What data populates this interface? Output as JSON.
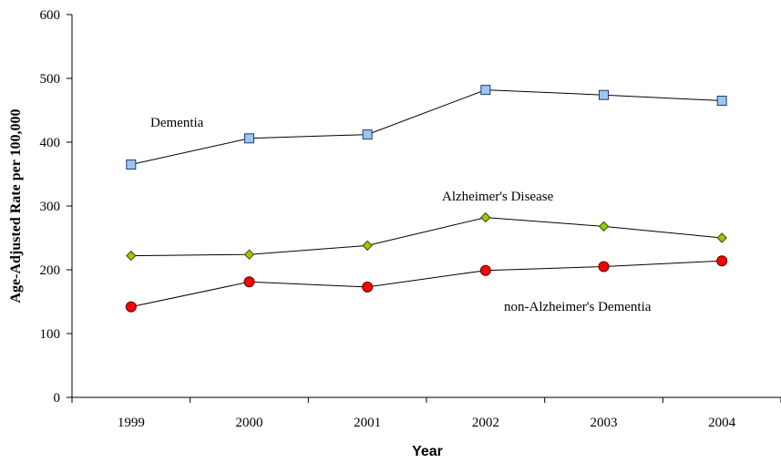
{
  "chart_data": {
    "type": "line",
    "title": "",
    "xlabel": "Year",
    "ylabel": "Age-Adjusted Rate per 100,000",
    "categories": [
      "1999",
      "2000",
      "2001",
      "2002",
      "2003",
      "2004"
    ],
    "ylim": [
      0,
      600
    ],
    "yticks": [
      0,
      100,
      200,
      300,
      400,
      500,
      600
    ],
    "grid": false,
    "legend": "none",
    "series": [
      {
        "name": "Dementia",
        "values": [
          365,
          406,
          412,
          482,
          474,
          465
        ],
        "marker": "square",
        "fill": "#9ec5ef",
        "stroke": "#1c3c6e"
      },
      {
        "name": "Alzheimer's Disease",
        "values": [
          222,
          224,
          238,
          282,
          268,
          250
        ],
        "marker": "diamond",
        "fill": "#99cc00",
        "stroke": "#3a4a00"
      },
      {
        "name": "non-Alzheimer's Dementia",
        "values": [
          142,
          181,
          173,
          199,
          205,
          214
        ],
        "marker": "circle",
        "fill": "#ff0000",
        "stroke": "#5a0000"
      }
    ]
  }
}
